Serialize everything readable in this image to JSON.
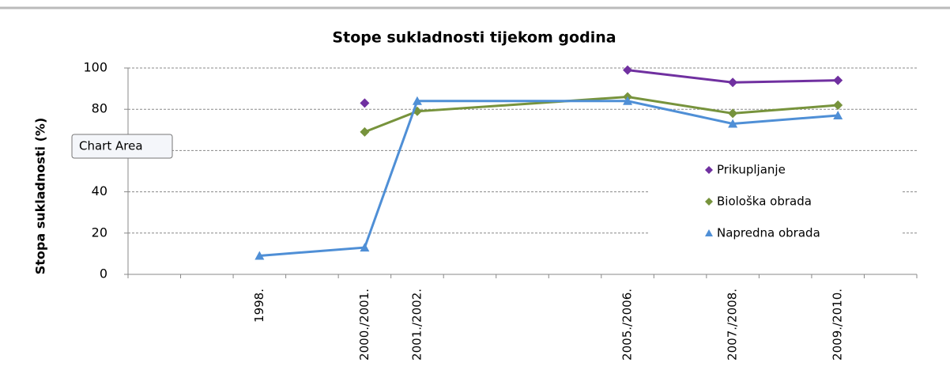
{
  "chart_data": {
    "type": "line",
    "title": "Stope sukladnosti tijekom godina",
    "ylabel": "Stopa sukladnosti (%)",
    "categories": [
      "1998.",
      "2000./2001.",
      "2001./2002.",
      "2005./2006.",
      "2007./2008.",
      "2009./2010."
    ],
    "series": [
      {
        "name": "Prikupljanje",
        "color": "#7030a0",
        "marker": "diamond",
        "values": [
          null,
          83,
          null,
          99,
          93,
          94
        ]
      },
      {
        "name": "Biološka obrada",
        "color": "#77933c",
        "marker": "diamond",
        "values": [
          null,
          69,
          79,
          86,
          78,
          82
        ]
      },
      {
        "name": "Napredna obrada",
        "color": "#4f8fd6",
        "marker": "triangle",
        "values": [
          9,
          13,
          84,
          84,
          73,
          77
        ]
      }
    ],
    "ylim": [
      0,
      100
    ],
    "yticks": [
      0,
      20,
      40,
      60,
      80,
      100
    ],
    "grid": true,
    "legend": "right",
    "tooltip": "Chart Area"
  }
}
